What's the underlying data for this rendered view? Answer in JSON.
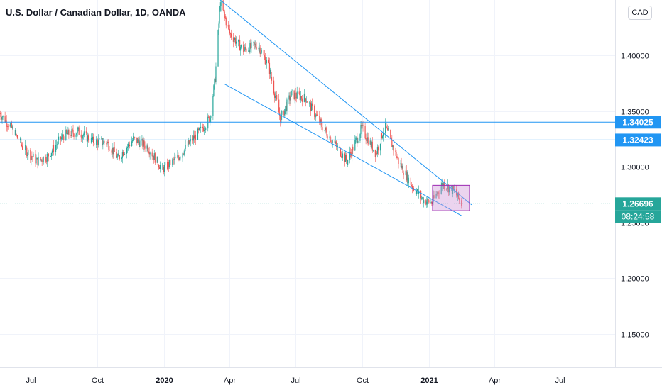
{
  "header": {
    "title": "U.S. Dollar / Canadian Dollar, 1D, OANDA",
    "currency": "CAD"
  },
  "colors": {
    "up": "#26a69a",
    "down": "#ef5350",
    "trendline": "#2196f3",
    "box_fill": "#ce93d8",
    "box_stroke": "#9c27b0",
    "price_label_bg": "#2196f3",
    "last_price_bg": "#26a69a",
    "grid": "#f0f3fa",
    "axis_text": "#131722"
  },
  "chart_data": {
    "type": "candlestick",
    "symbol": "USDCAD",
    "interval": "1D",
    "source": "OANDA",
    "x_ticks": [
      {
        "label": "Jul",
        "date": "2019-07-01",
        "bold": false
      },
      {
        "label": "Oct",
        "date": "2019-10-01",
        "bold": false
      },
      {
        "label": "2020",
        "date": "2020-01-01",
        "bold": true
      },
      {
        "label": "Apr",
        "date": "2020-04-01",
        "bold": false
      },
      {
        "label": "Jul",
        "date": "2020-07-01",
        "bold": false
      },
      {
        "label": "Oct",
        "date": "2020-10-01",
        "bold": false
      },
      {
        "label": "2021",
        "date": "2021-01-01",
        "bold": true
      },
      {
        "label": "Apr",
        "date": "2021-04-01",
        "bold": false
      },
      {
        "label": "Jul",
        "date": "2021-07-01",
        "bold": false
      }
    ],
    "x_range": [
      "2019-05-20",
      "2021-09-15"
    ],
    "y_ticks": [
      "1.40000",
      "1.35000",
      "1.30000",
      "1.25000",
      "1.20000",
      "1.15000"
    ],
    "y_range": [
      1.12,
      1.45
    ],
    "grid": true,
    "price_path": [
      [
        "2019-05-20",
        1.348
      ],
      [
        "2019-06-05",
        1.335
      ],
      [
        "2019-06-20",
        1.318
      ],
      [
        "2019-07-10",
        1.305
      ],
      [
        "2019-07-25",
        1.31
      ],
      [
        "2019-08-15",
        1.328
      ],
      [
        "2019-09-05",
        1.332
      ],
      [
        "2019-09-25",
        1.323
      ],
      [
        "2019-10-15",
        1.322
      ],
      [
        "2019-10-30",
        1.308
      ],
      [
        "2019-11-20",
        1.325
      ],
      [
        "2019-12-10",
        1.318
      ],
      [
        "2019-12-30",
        1.298
      ],
      [
        "2020-01-20",
        1.308
      ],
      [
        "2020-02-10",
        1.325
      ],
      [
        "2020-02-28",
        1.338
      ],
      [
        "2020-03-05",
        1.345
      ],
      [
        "2020-03-12",
        1.38
      ],
      [
        "2020-03-19",
        1.448
      ],
      [
        "2020-04-01",
        1.42
      ],
      [
        "2020-04-20",
        1.405
      ],
      [
        "2020-05-10",
        1.41
      ],
      [
        "2020-05-25",
        1.39
      ],
      [
        "2020-06-10",
        1.343
      ],
      [
        "2020-06-25",
        1.365
      ],
      [
        "2020-07-15",
        1.362
      ],
      [
        "2020-08-05",
        1.338
      ],
      [
        "2020-08-25",
        1.32
      ],
      [
        "2020-09-10",
        1.305
      ],
      [
        "2020-09-30",
        1.335
      ],
      [
        "2020-10-20",
        1.312
      ],
      [
        "2020-11-01",
        1.337
      ],
      [
        "2020-11-20",
        1.305
      ],
      [
        "2020-12-10",
        1.282
      ],
      [
        "2020-12-25",
        1.27
      ],
      [
        "2021-01-05",
        1.268
      ],
      [
        "2021-01-20",
        1.285
      ],
      [
        "2021-02-05",
        1.278
      ],
      [
        "2021-02-15",
        1.267
      ]
    ],
    "horizontal_lines": [
      {
        "price": 1.34025,
        "label": "1.34025"
      },
      {
        "price": 1.32423,
        "label": "1.32423"
      }
    ],
    "trendlines": [
      {
        "from": [
          "2020-03-19",
          1.45
        ],
        "to": [
          "2021-03-01",
          1.266
        ]
      },
      {
        "from": [
          "2020-03-25",
          1.3745
        ],
        "to": [
          "2021-02-15",
          1.2562
        ]
      }
    ],
    "box": {
      "from": [
        "2021-01-06",
        1.2835
      ],
      "to": [
        "2021-02-26",
        1.2607
      ]
    },
    "last_price": {
      "price": 1.26696,
      "label": "1.26696",
      "countdown": "08:24:58"
    }
  }
}
